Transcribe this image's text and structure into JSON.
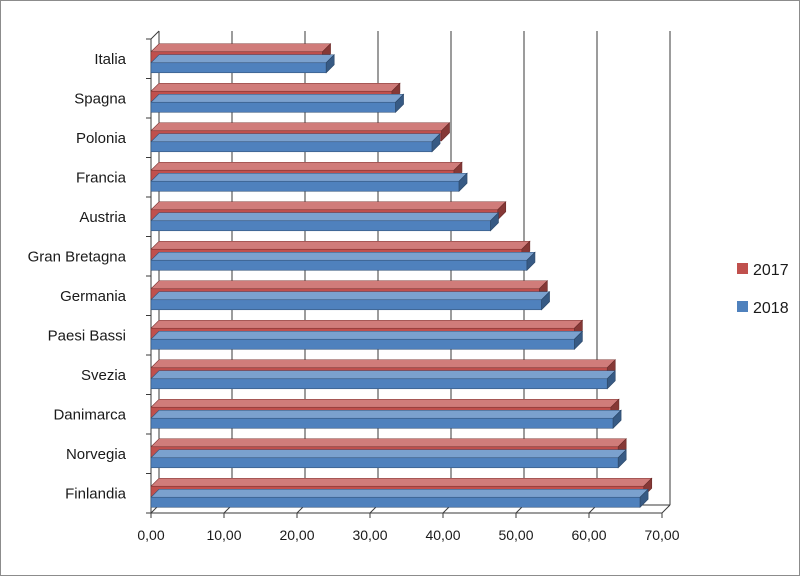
{
  "chart_data": {
    "type": "bar",
    "orientation": "horizontal",
    "style": "3d-clustered",
    "categories": [
      "Italia",
      "Spagna",
      "Polonia",
      "Francia",
      "Austria",
      "Gran Bretagna",
      "Germania",
      "Paesi Bassi",
      "Svezia",
      "Danimarca",
      "Norvegia",
      "Finlandia"
    ],
    "series": [
      {
        "name": "2017",
        "color": "#c0504d",
        "values": [
          23.5,
          33.0,
          39.8,
          41.5,
          47.5,
          50.8,
          53.2,
          58.0,
          62.5,
          63.0,
          64.0,
          67.5
        ]
      },
      {
        "name": "2018",
        "color": "#4f81bd",
        "values": [
          24.0,
          33.5,
          38.5,
          42.2,
          46.5,
          51.5,
          53.5,
          58.0,
          62.5,
          63.3,
          64.0,
          67.0
        ]
      }
    ],
    "x_ticks": [
      "0,00",
      "10,00",
      "20,00",
      "30,00",
      "40,00",
      "50,00",
      "60,00",
      "70,00"
    ],
    "xlim": [
      0,
      70
    ],
    "grid": "vertical",
    "legend": {
      "position": "right",
      "entries": [
        "2017",
        "2018"
      ]
    },
    "title": "",
    "xlabel": "",
    "ylabel": ""
  }
}
